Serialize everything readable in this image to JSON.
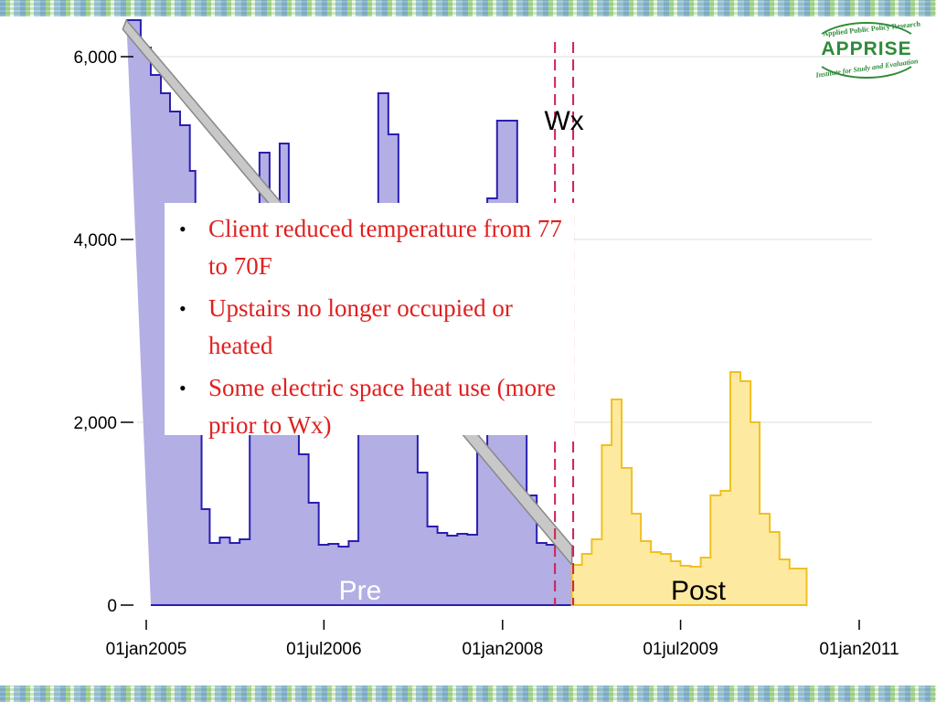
{
  "logo": {
    "name": "APPRISE",
    "top_line": "Applied Public Policy Research",
    "bottom_line": "Institute for Study and Evaluation"
  },
  "callout": {
    "bullets": [
      "Client reduced temperature from 77 to 70F",
      "Upstairs no longer occupied or heated",
      "Some electric space heat use (more prior to Wx)"
    ]
  },
  "chart_data": {
    "type": "area",
    "title": "",
    "xlabel": "",
    "ylabel": "",
    "ylim": [
      0,
      6000
    ],
    "xlim": [
      "2004-11-01",
      "2011-01-01"
    ],
    "y_ticks": [
      {
        "value": 0,
        "label": "0"
      },
      {
        "value": 2000,
        "label": "2,000"
      },
      {
        "value": 4000,
        "label": "4,000"
      },
      {
        "value": 6000,
        "label": "6,000"
      }
    ],
    "x_ticks": [
      {
        "value": "2005-01-01",
        "label": "01jan2005"
      },
      {
        "value": "2006-07-01",
        "label": "01jul2006"
      },
      {
        "value": "2008-01-01",
        "label": "01jan2008"
      },
      {
        "value": "2009-07-01",
        "label": "01jul2009"
      },
      {
        "value": "2011-01-01",
        "label": "01jan2011"
      }
    ],
    "grid": true,
    "annotations": [
      {
        "label": "Wx",
        "x_start": "2008-06-10",
        "x_end": "2008-08-05",
        "style": "dashed-vertical",
        "color": "#cc2255"
      }
    ],
    "series": [
      {
        "name": "Pre",
        "color": "#2a1fb0",
        "fill": "#b3aee4",
        "points": [
          [
            "2004-11-01",
            6400
          ],
          [
            "2004-12-15",
            6100
          ],
          [
            "2005-01-15",
            5800
          ],
          [
            "2005-02-15",
            5600
          ],
          [
            "2005-03-15",
            5400
          ],
          [
            "2005-04-15",
            5250
          ],
          [
            "2005-05-15",
            4750
          ],
          [
            "2005-06-01",
            2500
          ],
          [
            "2005-06-20",
            1050
          ],
          [
            "2005-07-15",
            680
          ],
          [
            "2005-08-15",
            740
          ],
          [
            "2005-09-15",
            680
          ],
          [
            "2005-10-15",
            720
          ],
          [
            "2005-11-15",
            2300
          ],
          [
            "2005-12-15",
            4950
          ],
          [
            "2006-01-15",
            3800
          ],
          [
            "2006-02-15",
            5050
          ],
          [
            "2006-03-15",
            3500
          ],
          [
            "2006-04-15",
            1650
          ],
          [
            "2006-05-15",
            1120
          ],
          [
            "2006-06-15",
            660
          ],
          [
            "2006-07-15",
            670
          ],
          [
            "2006-08-15",
            640
          ],
          [
            "2006-09-15",
            700
          ],
          [
            "2006-10-15",
            1900
          ],
          [
            "2006-11-15",
            2600
          ],
          [
            "2006-12-15",
            5600
          ],
          [
            "2007-01-15",
            5150
          ],
          [
            "2007-02-15",
            3100
          ],
          [
            "2007-03-15",
            2250
          ],
          [
            "2007-04-15",
            1450
          ],
          [
            "2007-05-15",
            860
          ],
          [
            "2007-06-15",
            790
          ],
          [
            "2007-07-15",
            760
          ],
          [
            "2007-08-15",
            780
          ],
          [
            "2007-09-15",
            770
          ],
          [
            "2007-10-15",
            1700
          ],
          [
            "2007-11-15",
            4450
          ],
          [
            "2007-12-15",
            5300
          ],
          [
            "2008-01-15",
            5300
          ],
          [
            "2008-02-15",
            2900
          ],
          [
            "2008-03-15",
            1200
          ],
          [
            "2008-04-15",
            680
          ],
          [
            "2008-05-15",
            660
          ],
          [
            "2008-06-15",
            660
          ],
          [
            "2008-07-15",
            650
          ],
          [
            "2008-08-01",
            640
          ]
        ]
      },
      {
        "name": "Post",
        "color": "#f0c020",
        "fill": "#fdeaa0",
        "points": [
          [
            "2008-08-01",
            440
          ],
          [
            "2008-09-01",
            560
          ],
          [
            "2008-10-01",
            720
          ],
          [
            "2008-11-01",
            1750
          ],
          [
            "2008-12-01",
            2250
          ],
          [
            "2009-01-01",
            1500
          ],
          [
            "2009-02-01",
            1000
          ],
          [
            "2009-03-01",
            700
          ],
          [
            "2009-04-01",
            580
          ],
          [
            "2009-05-01",
            560
          ],
          [
            "2009-06-01",
            480
          ],
          [
            "2009-07-01",
            430
          ],
          [
            "2009-08-01",
            420
          ],
          [
            "2009-09-01",
            520
          ],
          [
            "2009-10-01",
            1200
          ],
          [
            "2009-11-01",
            1250
          ],
          [
            "2009-12-01",
            2550
          ],
          [
            "2010-01-01",
            2450
          ],
          [
            "2010-02-01",
            2000
          ],
          [
            "2010-03-01",
            1000
          ],
          [
            "2010-04-01",
            800
          ],
          [
            "2010-05-01",
            500
          ],
          [
            "2010-06-01",
            400
          ],
          [
            "2010-07-01",
            400
          ]
        ]
      }
    ],
    "gap_band": {
      "color": "#c8c8c8",
      "upper": [
        [
          "2004-11-01",
          6400
        ],
        [
          "2008-08-01",
          650
        ]
      ],
      "lower": [
        [
          "2004-11-01",
          6400
        ],
        [
          "2008-08-01",
          440
        ]
      ]
    }
  }
}
